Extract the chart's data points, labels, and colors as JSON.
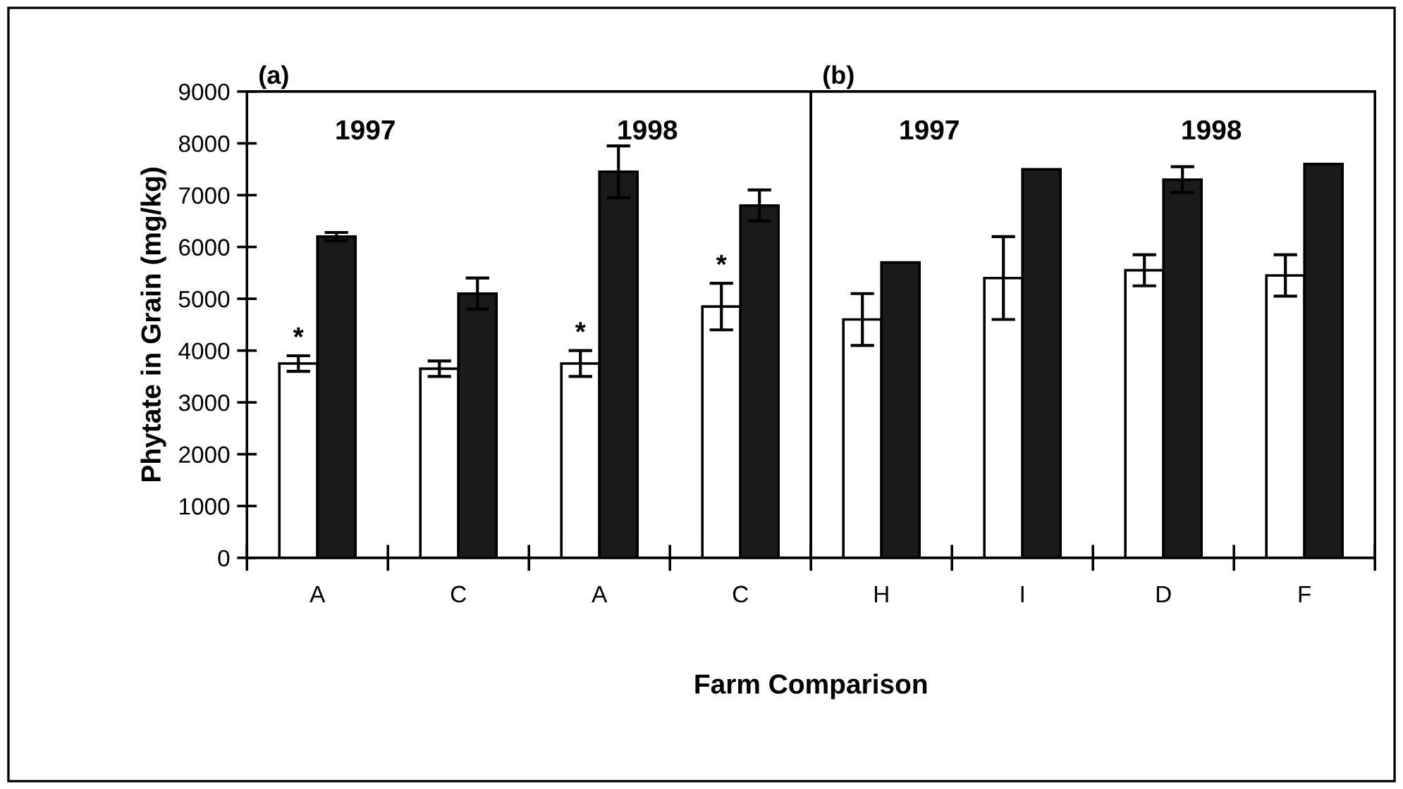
{
  "chart_data": [
    {
      "type": "bar",
      "title": "(a)",
      "ylabel": "Phytate in Grain (mg/kg)",
      "xlabel": "Farm Comparison",
      "categories": [
        "A",
        "C",
        "A",
        "C"
      ],
      "ylim": [
        0,
        9000
      ],
      "yticks": [
        0,
        1000,
        2000,
        3000,
        4000,
        5000,
        6000,
        7000,
        8000,
        9000
      ],
      "grid": false,
      "legend": false,
      "annotations": [
        "1997",
        "1998"
      ],
      "series": [
        {
          "color": "#ffffff",
          "values": [
            3750,
            3650,
            3750,
            4850
          ],
          "errors": [
            150,
            150,
            250,
            450
          ],
          "value_labels": [
            "*",
            null,
            "*",
            "*"
          ]
        },
        {
          "color": "#1a1a1a",
          "values": [
            6200,
            5100,
            7450,
            6800
          ],
          "errors": [
            80,
            300,
            500,
            300
          ]
        }
      ]
    },
    {
      "type": "bar",
      "title": "(b)",
      "categories": [
        "H",
        "I",
        "D",
        "F"
      ],
      "ylim": [
        0,
        9000
      ],
      "tick_labels": "x",
      "grid": false,
      "legend": false,
      "annotations": [
        "1997",
        "1998"
      ],
      "series": [
        {
          "color": "#ffffff",
          "values": [
            4600,
            5400,
            5550,
            5450
          ],
          "errors": [
            500,
            800,
            300,
            400
          ]
        },
        {
          "color": "#1a1a1a",
          "values": [
            5700,
            7500,
            7300,
            7600
          ],
          "errors": [
            null,
            null,
            250,
            null
          ]
        }
      ]
    }
  ]
}
